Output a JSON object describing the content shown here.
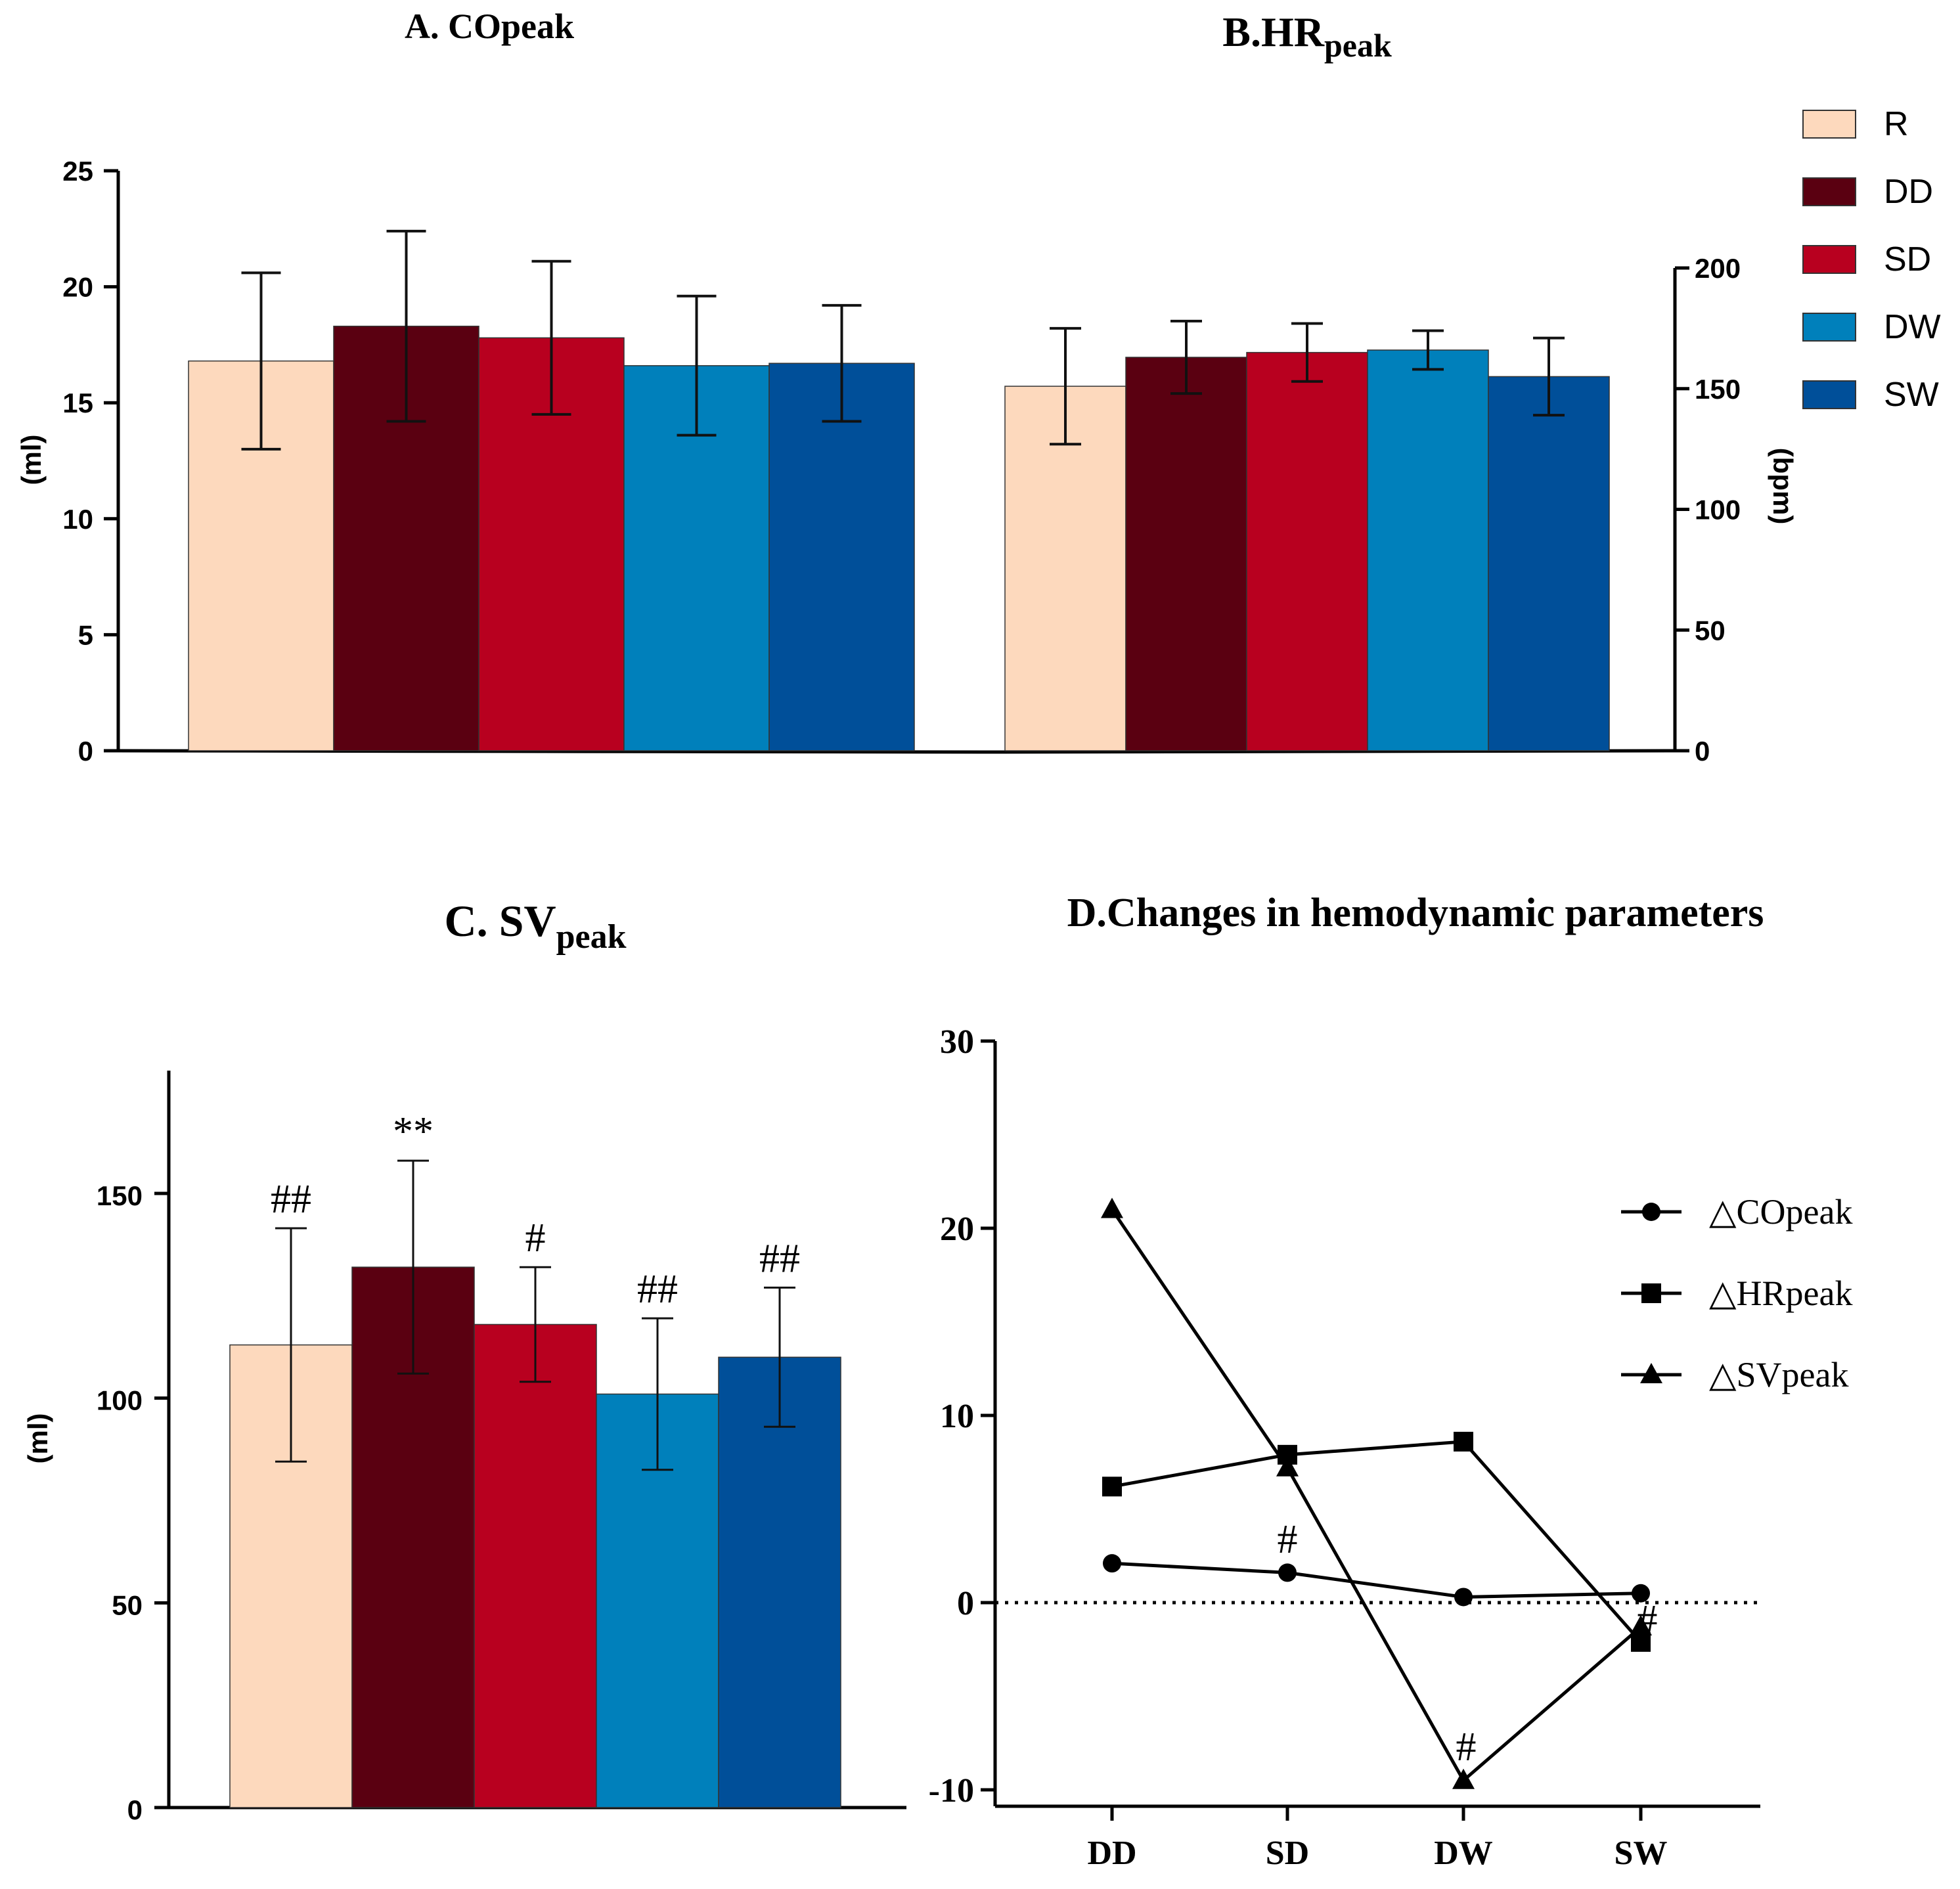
{
  "chart_data": [
    {
      "id": "A",
      "type": "bar",
      "title": "A. COpeak",
      "ylabel": "(ml)",
      "ylim": [
        0,
        25
      ],
      "yticks": [
        "0",
        "5",
        "10",
        "15",
        "20",
        "25"
      ],
      "categories": [
        "R",
        "DD",
        "SD",
        "DW",
        "SW"
      ],
      "values": [
        16.8,
        18.3,
        17.8,
        16.6,
        16.7
      ],
      "errors": [
        3.8,
        4.1,
        3.3,
        3.0,
        2.5
      ]
    },
    {
      "id": "B",
      "type": "bar",
      "title": "B.HR",
      "title_sub": "peak",
      "ylabel": "(bpm)",
      "ylim": [
        0,
        200
      ],
      "yticks": [
        "0",
        "50",
        "100",
        "150",
        "200"
      ],
      "categories": [
        "R",
        "DD",
        "SD",
        "DW",
        "SW"
      ],
      "values": [
        151,
        163,
        165,
        166,
        155
      ],
      "errors": [
        24,
        15,
        12,
        8,
        16
      ]
    },
    {
      "id": "C",
      "type": "bar",
      "title": "C. SV",
      "title_sub": "peak",
      "ylabel": "(ml)",
      "ylim": [
        0,
        180
      ],
      "yticks": [
        "0",
        "50",
        "100",
        "150"
      ],
      "categories": [
        "R",
        "DD",
        "SD",
        "DW",
        "SW"
      ],
      "values": [
        113,
        132,
        118,
        101,
        110
      ],
      "errors": [
        28.5,
        26,
        14,
        18.5,
        17
      ],
      "annotations": [
        "##",
        "**",
        "#",
        "##",
        "##"
      ]
    },
    {
      "id": "D",
      "type": "line",
      "title": "D.Changes in hemodynamic parameters",
      "categories": [
        "DD",
        "SD",
        "DW",
        "SW"
      ],
      "ylim": [
        -10,
        30
      ],
      "yticks": [
        "-10",
        "0",
        "10",
        "20",
        "30"
      ],
      "series": [
        {
          "name": "△COpeak",
          "marker": "circle",
          "values": [
            2.1,
            1.6,
            0.3,
            0.5
          ]
        },
        {
          "name": "△HRpeak",
          "marker": "square",
          "values": [
            6.2,
            7.9,
            8.6,
            -2.1
          ]
        },
        {
          "name": "△SVpeak",
          "marker": "triangle",
          "values": [
            21,
            7.2,
            -9.5,
            -1.3
          ]
        }
      ],
      "reference_line": 0,
      "annotations": [
        {
          "text": "#",
          "category": "SD"
        },
        {
          "text": "#",
          "category": "DW"
        },
        {
          "text": "#",
          "category": "SW"
        }
      ]
    }
  ],
  "legend": {
    "items": [
      {
        "label": "R",
        "color": "#FDD9BD"
      },
      {
        "label": "DD",
        "color": "#5A0011"
      },
      {
        "label": "SD",
        "color": "#B8001F"
      },
      {
        "label": "DW",
        "color": "#0080BB"
      },
      {
        "label": "SW",
        "color": "#004F99"
      }
    ]
  }
}
